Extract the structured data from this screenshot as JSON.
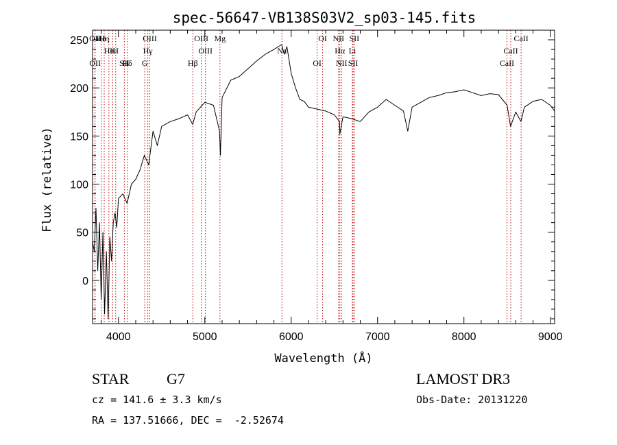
{
  "chart_data": {
    "type": "line",
    "title": "spec-56647-VB138S03V2_sp03-145.fits",
    "xlabel": "Wavelength (Å)",
    "ylabel": "Flux (relative)",
    "xlim": [
      3700,
      9050
    ],
    "ylim": [
      -45,
      260
    ],
    "xticks": [
      4000,
      5000,
      6000,
      7000,
      8000,
      9000
    ],
    "yticks": [
      0,
      50,
      100,
      150,
      200,
      250
    ],
    "grid": false,
    "series": [
      {
        "x": [
          3700,
          3720,
          3740,
          3760,
          3780,
          3800,
          3820,
          3840,
          3860,
          3880,
          3900,
          3920,
          3940,
          3960,
          3980,
          4000,
          4050,
          4100,
          4150,
          4200,
          4250,
          4300,
          4350,
          4400,
          4450,
          4500,
          4600,
          4700,
          4800,
          4860,
          4900,
          5000,
          5100,
          5170,
          5180,
          5200,
          5300,
          5400,
          5500,
          5600,
          5700,
          5800,
          5890,
          5920,
          5950,
          6000,
          6050,
          6100,
          6150,
          6200,
          6300,
          6400,
          6500,
          6560,
          6563,
          6600,
          6700,
          6800,
          6900,
          7000,
          7100,
          7200,
          7300,
          7350,
          7400,
          7500,
          7600,
          7700,
          7800,
          7900,
          8000,
          8100,
          8200,
          8300,
          8400,
          8500,
          8540,
          8600,
          8660,
          8700,
          8800,
          8900,
          9000,
          9050
        ],
        "y": [
          40,
          30,
          75,
          10,
          60,
          -20,
          50,
          -35,
          30,
          -40,
          45,
          20,
          60,
          70,
          55,
          85,
          90,
          80,
          100,
          105,
          115,
          130,
          120,
          155,
          140,
          160,
          165,
          168,
          172,
          162,
          175,
          185,
          182,
          155,
          130,
          190,
          208,
          212,
          220,
          228,
          235,
          240,
          245,
          235,
          243,
          215,
          200,
          188,
          186,
          180,
          178,
          176,
          172,
          165,
          152,
          170,
          168,
          165,
          175,
          180,
          188,
          182,
          176,
          155,
          180,
          185,
          190,
          192,
          195,
          196,
          198,
          195,
          192,
          194,
          193,
          182,
          160,
          175,
          165,
          180,
          186,
          188,
          182,
          176
        ]
      }
    ],
    "spectral_lines": [
      {
        "label": "Hδ",
        "x": 3800
      },
      {
        "label": "K",
        "x": 3934
      },
      {
        "label": "Hδ",
        "x": 4102
      },
      {
        "label": "OII",
        "x": 3727
      },
      {
        "label": "He",
        "x": 3889
      },
      {
        "label": "SII",
        "x": 4068
      },
      {
        "label": "OIII",
        "x": 4363
      },
      {
        "label": "Hγ",
        "x": 4340
      },
      {
        "label": "OII",
        "x": 3729
      },
      {
        "label": "Hη",
        "x": 3835
      },
      {
        "label": "H",
        "x": 3968
      },
      {
        "label": "G",
        "x": 4304
      },
      {
        "label": "OIII",
        "x": 4959
      },
      {
        "label": "OIII",
        "x": 5007
      },
      {
        "label": "Hβ",
        "x": 4861
      },
      {
        "label": "Mg",
        "x": 5175
      },
      {
        "label": "Na",
        "x": 5893
      },
      {
        "label": "OI",
        "x": 6300
      },
      {
        "label": "OI",
        "x": 6364
      },
      {
        "label": "Hα",
        "x": 6563
      },
      {
        "label": "SII",
        "x": 6717
      },
      {
        "label": "NII",
        "x": 6548
      },
      {
        "label": "Li",
        "x": 6708
      },
      {
        "label": "NII",
        "x": 6583
      },
      {
        "label": "SII",
        "x": 6731
      },
      {
        "label": "CaII",
        "x": 8542
      },
      {
        "label": "CaII",
        "x": 8498
      },
      {
        "label": "CaII",
        "x": 8662
      }
    ]
  },
  "info": {
    "object_class": "STAR",
    "subclass": "G7",
    "survey": "LAMOST DR3",
    "velocity": "cz = 141.6 ± 3.3 km/s",
    "obs_date": "Obs-Date: 20131220",
    "coords": "RA = 137.51666, DEC =  -2.52674"
  },
  "colors": {
    "spectrum": "#000000",
    "line_markers": "#c00000",
    "background": "#ffffff"
  }
}
